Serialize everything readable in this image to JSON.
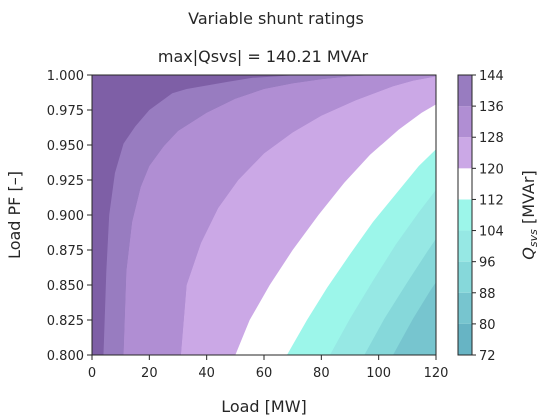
{
  "chart_data": {
    "type": "contourf",
    "title": "Variable shunt ratings",
    "subtitle": "max|Qsvs| = 140.21 MVAr",
    "xlabel": "Load [MW]",
    "ylabel": "Load PF [–]",
    "xlim": [
      0,
      120
    ],
    "ylim": [
      0.8,
      1.0
    ],
    "x_ticks": [
      "0",
      "20",
      "40",
      "60",
      "80",
      "100",
      "120"
    ],
    "y_ticks": [
      "0.800",
      "0.825",
      "0.850",
      "0.875",
      "0.900",
      "0.925",
      "0.950",
      "0.975",
      "1.000"
    ],
    "colorbar": {
      "label_main": "Q",
      "label_sub": "svs",
      "label_unit": " [MVAr]",
      "ticks": [
        "72",
        "80",
        "88",
        "96",
        "104",
        "112",
        "120",
        "128",
        "136",
        "144"
      ],
      "levels": [
        72,
        80,
        88,
        96,
        104,
        112,
        120,
        128,
        136,
        144
      ],
      "colors": [
        "#67b4c4",
        "#77c5cf",
        "#86d8da",
        "#96e8e4",
        "#9cf6ea",
        "#ffffff",
        "#cba8e6",
        "#b08ed3",
        "#987cc0",
        "#7e5fa6"
      ]
    },
    "regions": [
      {
        "range": [
          136,
          144
        ],
        "color": "#7e5fa6",
        "boundary_from_top": [
          [
            0.99,
            0.8
          ],
          [
            4,
            0.8
          ],
          [
            5,
            0.86
          ],
          [
            6,
            0.9
          ],
          [
            8,
            0.93
          ],
          [
            11,
            0.951
          ],
          [
            15,
            0.963
          ],
          [
            20,
            0.975
          ],
          [
            28,
            0.987
          ],
          [
            33,
            0.99
          ],
          [
            47,
            0.995
          ],
          [
            56,
            0.998
          ],
          [
            72,
            1.0
          ]
        ]
      },
      {
        "range": [
          128,
          136
        ],
        "color": "#987cc0",
        "boundary_from_top": [
          [
            4,
            0.8
          ],
          [
            5,
            0.86
          ],
          [
            6,
            0.9
          ],
          [
            8,
            0.93
          ],
          [
            11,
            0.951
          ],
          [
            15,
            0.963
          ],
          [
            20,
            0.975
          ],
          [
            28,
            0.987
          ],
          [
            33,
            0.99
          ],
          [
            47,
            0.995
          ],
          [
            56,
            0.998
          ],
          [
            72,
            1.0
          ]
        ],
        "boundary_to_next": [
          [
            11,
            0.8
          ],
          [
            12,
            0.86
          ],
          [
            14,
            0.895
          ],
          [
            17,
            0.92
          ],
          [
            20,
            0.935
          ],
          [
            25,
            0.949
          ],
          [
            30,
            0.96
          ],
          [
            40,
            0.973
          ],
          [
            50,
            0.983
          ],
          [
            60,
            0.99
          ],
          [
            70,
            0.994
          ],
          [
            80,
            0.997
          ],
          [
            90,
            0.999
          ],
          [
            99,
            1.0
          ]
        ]
      },
      {
        "range": [
          120,
          128
        ],
        "color": "#b08ed3",
        "boundary_to_next": [
          [
            31,
            0.8
          ],
          [
            33,
            0.85
          ],
          [
            38,
            0.88
          ],
          [
            44,
            0.905
          ],
          [
            51,
            0.925
          ],
          [
            60,
            0.944
          ],
          [
            70,
            0.959
          ],
          [
            80,
            0.971
          ],
          [
            92,
            0.982
          ],
          [
            105,
            0.992
          ],
          [
            112,
            0.996
          ],
          [
            120,
            0.999
          ]
        ]
      },
      {
        "range": [
          112,
          120
        ],
        "color": "#cba8e6",
        "boundary_to_next": [
          [
            50,
            0.8
          ],
          [
            55,
            0.825
          ],
          [
            62,
            0.85
          ],
          [
            70,
            0.875
          ],
          [
            79,
            0.9
          ],
          [
            88,
            0.923
          ],
          [
            97,
            0.943
          ],
          [
            107,
            0.961
          ],
          [
            115,
            0.973
          ],
          [
            120,
            0.979
          ]
        ]
      },
      {
        "range": [
          104,
          112
        ],
        "color": "#ffffff",
        "boundary_to_next": [
          [
            68,
            0.8
          ],
          [
            75,
            0.825
          ],
          [
            82,
            0.848
          ],
          [
            90,
            0.872
          ],
          [
            98,
            0.895
          ],
          [
            106,
            0.915
          ],
          [
            114,
            0.935
          ],
          [
            120,
            0.947
          ]
        ]
      },
      {
        "range": [
          96,
          104
        ],
        "color": "#9cf6ea",
        "boundary_to_next": [
          [
            83,
            0.8
          ],
          [
            90,
            0.826
          ],
          [
            98,
            0.853
          ],
          [
            106,
            0.879
          ],
          [
            114,
            0.902
          ],
          [
            120,
            0.918
          ]
        ]
      },
      {
        "range": [
          88,
          96
        ],
        "color": "#96e8e4",
        "boundary_to_next": [
          [
            95,
            0.8
          ],
          [
            102,
            0.826
          ],
          [
            110,
            0.852
          ],
          [
            117,
            0.874
          ],
          [
            120,
            0.883
          ]
        ]
      },
      {
        "range": [
          80,
          88
        ],
        "color": "#86d8da",
        "boundary_to_next": [
          [
            105,
            0.8
          ],
          [
            112,
            0.826
          ],
          [
            118,
            0.846
          ],
          [
            120,
            0.852
          ]
        ]
      },
      {
        "range": [
          72,
          80
        ],
        "color": "#77c5cf",
        "boundary_to_next": [
          [
            113,
            0.8
          ],
          [
            118,
            0.82
          ],
          [
            120,
            0.827
          ]
        ]
      }
    ]
  }
}
